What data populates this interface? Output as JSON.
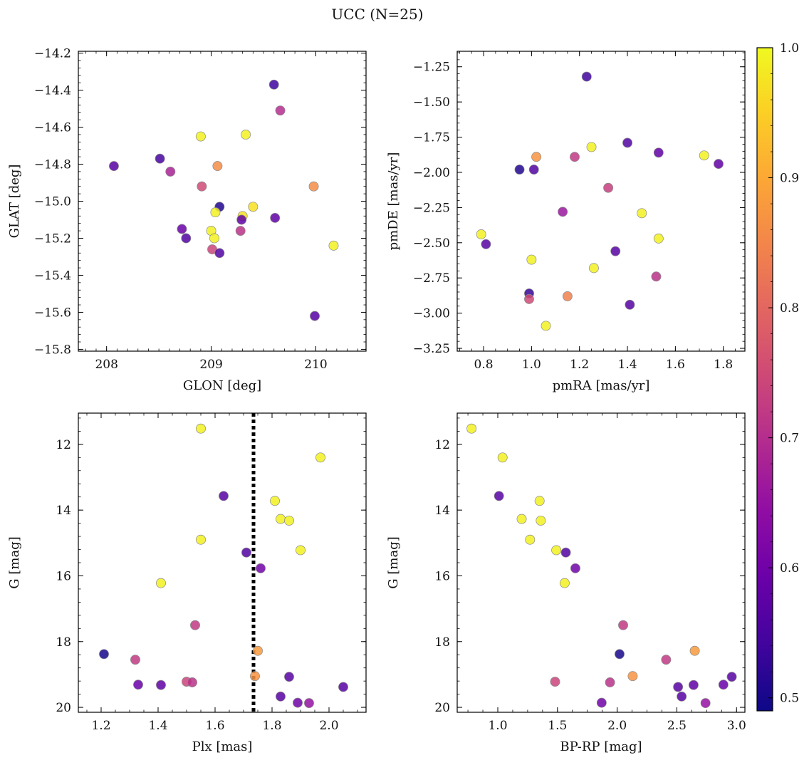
{
  "figure": {
    "suptitle": "UCC (N=25)"
  },
  "colorbar": {
    "min": 0.49,
    "max": 1.0,
    "ticks": [
      "0.5",
      "0.6",
      "0.7",
      "0.8",
      "0.9",
      "1.0"
    ],
    "tick_values": [
      0.5,
      0.6,
      0.7,
      0.8,
      0.9,
      1.0
    ],
    "colormap": "plasma"
  },
  "chart_data": [
    {
      "type": "scatter",
      "xlabel": "GLON [deg]",
      "ylabel": "GLAT [deg]",
      "xlim": [
        207.73,
        210.48
      ],
      "ylim": [
        -15.81,
        -14.19
      ],
      "x_ticks": [
        208,
        209,
        210
      ],
      "x_tick_labels": [
        "208",
        "209",
        "210"
      ],
      "y_ticks": [
        -15.8,
        -15.6,
        -15.4,
        -15.2,
        -15.0,
        -14.8,
        -14.6,
        -14.4,
        -14.2
      ],
      "y_tick_labels": [
        "−15.8",
        "−15.6",
        "−15.4",
        "−15.2",
        "−15.0",
        "−14.8",
        "−14.6",
        "−14.4",
        "−14.2"
      ],
      "points": [
        {
          "x": 209.6,
          "y": -14.37,
          "c": 0.54
        },
        {
          "x": 209.66,
          "y": -14.51,
          "c": 0.7
        },
        {
          "x": 208.9,
          "y": -14.65,
          "c": 0.99
        },
        {
          "x": 209.33,
          "y": -14.64,
          "c": 0.99
        },
        {
          "x": 208.07,
          "y": -14.81,
          "c": 0.57
        },
        {
          "x": 208.51,
          "y": -14.77,
          "c": 0.55
        },
        {
          "x": 208.61,
          "y": -14.84,
          "c": 0.68
        },
        {
          "x": 209.06,
          "y": -14.81,
          "c": 0.86
        },
        {
          "x": 208.91,
          "y": -14.92,
          "c": 0.75
        },
        {
          "x": 209.98,
          "y": -14.92,
          "c": 0.86
        },
        {
          "x": 209.08,
          "y": -15.03,
          "c": 0.51
        },
        {
          "x": 209.4,
          "y": -15.03,
          "c": 0.97
        },
        {
          "x": 209.04,
          "y": -15.06,
          "c": 0.99
        },
        {
          "x": 209.3,
          "y": -15.08,
          "c": 0.97
        },
        {
          "x": 209.29,
          "y": -15.1,
          "c": 0.58
        },
        {
          "x": 209.61,
          "y": -15.09,
          "c": 0.58
        },
        {
          "x": 208.72,
          "y": -15.15,
          "c": 0.59
        },
        {
          "x": 209.0,
          "y": -15.16,
          "c": 0.99
        },
        {
          "x": 209.28,
          "y": -15.16,
          "c": 0.71
        },
        {
          "x": 208.76,
          "y": -15.2,
          "c": 0.56
        },
        {
          "x": 209.03,
          "y": -15.2,
          "c": 0.99
        },
        {
          "x": 210.17,
          "y": -15.24,
          "c": 0.99
        },
        {
          "x": 209.01,
          "y": -15.26,
          "c": 0.74
        },
        {
          "x": 209.08,
          "y": -15.28,
          "c": 0.56
        },
        {
          "x": 209.99,
          "y": -15.62,
          "c": 0.57
        }
      ]
    },
    {
      "type": "scatter",
      "xlabel": "pmRA [mas/yr]",
      "ylabel": "pmDE [mas/yr]",
      "xlim": [
        0.69,
        1.89
      ],
      "ylim": [
        -3.27,
        -1.14
      ],
      "x_ticks": [
        0.8,
        1.0,
        1.2,
        1.4,
        1.6,
        1.8
      ],
      "x_tick_labels": [
        "0.8",
        "1.0",
        "1.2",
        "1.4",
        "1.6",
        "1.8"
      ],
      "y_ticks": [
        -3.25,
        -3.0,
        -2.75,
        -2.5,
        -2.25,
        -2.0,
        -1.75,
        -1.5,
        -1.25
      ],
      "y_tick_labels": [
        "−3.25",
        "−3.00",
        "−2.75",
        "−2.50",
        "−2.25",
        "−2.00",
        "−1.75",
        "−1.50",
        "−1.25"
      ],
      "points": [
        {
          "x": 1.23,
          "y": -1.32,
          "c": 0.54
        },
        {
          "x": 1.4,
          "y": -1.79,
          "c": 0.56
        },
        {
          "x": 1.25,
          "y": -1.82,
          "c": 0.99
        },
        {
          "x": 1.53,
          "y": -1.86,
          "c": 0.58
        },
        {
          "x": 1.72,
          "y": -1.88,
          "c": 0.99
        },
        {
          "x": 1.02,
          "y": -1.89,
          "c": 0.87
        },
        {
          "x": 1.18,
          "y": -1.89,
          "c": 0.72
        },
        {
          "x": 1.78,
          "y": -1.94,
          "c": 0.58
        },
        {
          "x": 0.95,
          "y": -1.98,
          "c": 0.51
        },
        {
          "x": 1.01,
          "y": -1.98,
          "c": 0.56
        },
        {
          "x": 1.32,
          "y": -2.11,
          "c": 0.73
        },
        {
          "x": 1.13,
          "y": -2.28,
          "c": 0.66
        },
        {
          "x": 1.46,
          "y": -2.29,
          "c": 0.99
        },
        {
          "x": 0.79,
          "y": -2.44,
          "c": 0.99
        },
        {
          "x": 1.53,
          "y": -2.47,
          "c": 0.99
        },
        {
          "x": 0.81,
          "y": -2.51,
          "c": 0.57
        },
        {
          "x": 1.35,
          "y": -2.56,
          "c": 0.57
        },
        {
          "x": 1.0,
          "y": -2.62,
          "c": 0.99
        },
        {
          "x": 1.26,
          "y": -2.68,
          "c": 0.99
        },
        {
          "x": 1.52,
          "y": -2.74,
          "c": 0.71
        },
        {
          "x": 0.99,
          "y": -2.86,
          "c": 0.53
        },
        {
          "x": 0.99,
          "y": -2.9,
          "c": 0.75
        },
        {
          "x": 1.15,
          "y": -2.88,
          "c": 0.84
        },
        {
          "x": 1.41,
          "y": -2.94,
          "c": 0.57
        },
        {
          "x": 1.06,
          "y": -3.09,
          "c": 0.99
        }
      ]
    },
    {
      "type": "scatter",
      "xlabel": "Plx [mas]",
      "ylabel": "G [mag]",
      "xlim": [
        1.12,
        2.13
      ],
      "ylim": [
        20.15,
        11.05
      ],
      "y_inverted": true,
      "x_ticks": [
        1.2,
        1.4,
        1.6,
        1.8,
        2.0
      ],
      "x_tick_labels": [
        "1.2",
        "1.4",
        "1.6",
        "1.8",
        "2.0"
      ],
      "y_ticks": [
        12,
        14,
        16,
        18,
        20
      ],
      "y_tick_labels": [
        "12",
        "14",
        "16",
        "18",
        "20"
      ],
      "vline": {
        "x": 1.735,
        "style": "dotted",
        "color": "#000000"
      },
      "points": [
        {
          "x": 1.55,
          "y": 11.52,
          "c": 0.99
        },
        {
          "x": 1.97,
          "y": 12.4,
          "c": 0.99
        },
        {
          "x": 1.63,
          "y": 13.57,
          "c": 0.57
        },
        {
          "x": 1.81,
          "y": 13.72,
          "c": 0.99
        },
        {
          "x": 1.83,
          "y": 14.27,
          "c": 0.99
        },
        {
          "x": 1.86,
          "y": 14.32,
          "c": 0.99
        },
        {
          "x": 1.55,
          "y": 14.9,
          "c": 0.99
        },
        {
          "x": 1.9,
          "y": 15.22,
          "c": 0.99
        },
        {
          "x": 1.71,
          "y": 15.29,
          "c": 0.56
        },
        {
          "x": 1.76,
          "y": 15.77,
          "c": 0.6
        },
        {
          "x": 1.41,
          "y": 16.22,
          "c": 0.99
        },
        {
          "x": 1.53,
          "y": 17.5,
          "c": 0.72
        },
        {
          "x": 1.75,
          "y": 18.28,
          "c": 0.88
        },
        {
          "x": 1.21,
          "y": 18.38,
          "c": 0.5
        },
        {
          "x": 1.32,
          "y": 18.55,
          "c": 0.72
        },
        {
          "x": 1.74,
          "y": 19.05,
          "c": 0.87
        },
        {
          "x": 1.86,
          "y": 19.07,
          "c": 0.57
        },
        {
          "x": 1.5,
          "y": 19.22,
          "c": 0.74
        },
        {
          "x": 1.52,
          "y": 19.24,
          "c": 0.71
        },
        {
          "x": 1.33,
          "y": 19.31,
          "c": 0.59
        },
        {
          "x": 1.41,
          "y": 19.32,
          "c": 0.58
        },
        {
          "x": 2.05,
          "y": 19.38,
          "c": 0.57
        },
        {
          "x": 1.83,
          "y": 19.67,
          "c": 0.57
        },
        {
          "x": 1.89,
          "y": 19.86,
          "c": 0.6
        },
        {
          "x": 1.93,
          "y": 19.87,
          "c": 0.65
        }
      ]
    },
    {
      "type": "scatter",
      "xlabel": "BP-RP [mag]",
      "ylabel": "G [mag]",
      "xlim": [
        0.66,
        3.07
      ],
      "ylim": [
        20.15,
        11.05
      ],
      "y_inverted": true,
      "x_ticks": [
        1.0,
        1.5,
        2.0,
        2.5,
        3.0
      ],
      "x_tick_labels": [
        "1.0",
        "1.5",
        "2.0",
        "2.5",
        "3.0"
      ],
      "y_ticks": [
        12,
        14,
        16,
        18,
        20
      ],
      "y_tick_labels": [
        "12",
        "14",
        "16",
        "18",
        "20"
      ],
      "points": [
        {
          "x": 0.78,
          "y": 11.52,
          "c": 0.99
        },
        {
          "x": 1.04,
          "y": 12.4,
          "c": 0.99
        },
        {
          "x": 1.01,
          "y": 13.57,
          "c": 0.57
        },
        {
          "x": 1.35,
          "y": 13.72,
          "c": 0.99
        },
        {
          "x": 1.2,
          "y": 14.27,
          "c": 0.99
        },
        {
          "x": 1.36,
          "y": 14.32,
          "c": 0.99
        },
        {
          "x": 1.27,
          "y": 14.9,
          "c": 0.99
        },
        {
          "x": 1.49,
          "y": 15.22,
          "c": 0.99
        },
        {
          "x": 1.57,
          "y": 15.29,
          "c": 0.56
        },
        {
          "x": 1.65,
          "y": 15.77,
          "c": 0.6
        },
        {
          "x": 1.56,
          "y": 16.22,
          "c": 0.99
        },
        {
          "x": 2.05,
          "y": 17.5,
          "c": 0.72
        },
        {
          "x": 2.65,
          "y": 18.28,
          "c": 0.88
        },
        {
          "x": 2.02,
          "y": 18.38,
          "c": 0.5
        },
        {
          "x": 2.41,
          "y": 18.55,
          "c": 0.72
        },
        {
          "x": 2.13,
          "y": 19.05,
          "c": 0.87
        },
        {
          "x": 2.96,
          "y": 19.07,
          "c": 0.57
        },
        {
          "x": 1.48,
          "y": 19.22,
          "c": 0.74
        },
        {
          "x": 1.94,
          "y": 19.24,
          "c": 0.71
        },
        {
          "x": 2.89,
          "y": 19.31,
          "c": 0.59
        },
        {
          "x": 2.64,
          "y": 19.32,
          "c": 0.58
        },
        {
          "x": 2.51,
          "y": 19.38,
          "c": 0.57
        },
        {
          "x": 2.54,
          "y": 19.67,
          "c": 0.57
        },
        {
          "x": 1.87,
          "y": 19.86,
          "c": 0.6
        },
        {
          "x": 2.74,
          "y": 19.87,
          "c": 0.65
        }
      ]
    }
  ]
}
